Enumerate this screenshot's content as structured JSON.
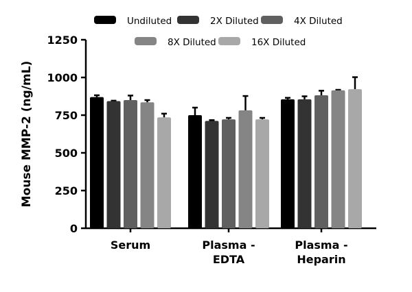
{
  "chart_data": {
    "type": "bar",
    "title": "",
    "xlabel": "",
    "ylabel": "Mouse MMP-2 (ng/mL)",
    "ylim": [
      0,
      1250
    ],
    "yticks": [
      0,
      250,
      500,
      750,
      1000,
      1250
    ],
    "categories": [
      [
        "Serum"
      ],
      [
        "Plasma -",
        "EDTA"
      ],
      [
        "Plasma -",
        "Heparin"
      ]
    ],
    "legend_position": "top",
    "grid": false,
    "series": [
      {
        "name": "Undiluted",
        "color": "#000000",
        "values": [
          870,
          750,
          855
        ],
        "errors": [
          12,
          50,
          10
        ]
      },
      {
        "name": "2X Diluted",
        "color": "#333333",
        "values": [
          843,
          712,
          855
        ],
        "errors": [
          3,
          5,
          20
        ]
      },
      {
        "name": "4X Diluted",
        "color": "#606060",
        "values": [
          850,
          722,
          882
        ],
        "errors": [
          30,
          10,
          30
        ]
      },
      {
        "name": "8X Diluted",
        "color": "#858585",
        "values": [
          835,
          782,
          915
        ],
        "errors": [
          15,
          95,
          3
        ]
      },
      {
        "name": "16X Diluted",
        "color": "#a8a8a8",
        "values": [
          735,
          722,
          922
        ],
        "errors": [
          25,
          10,
          80
        ]
      }
    ]
  }
}
